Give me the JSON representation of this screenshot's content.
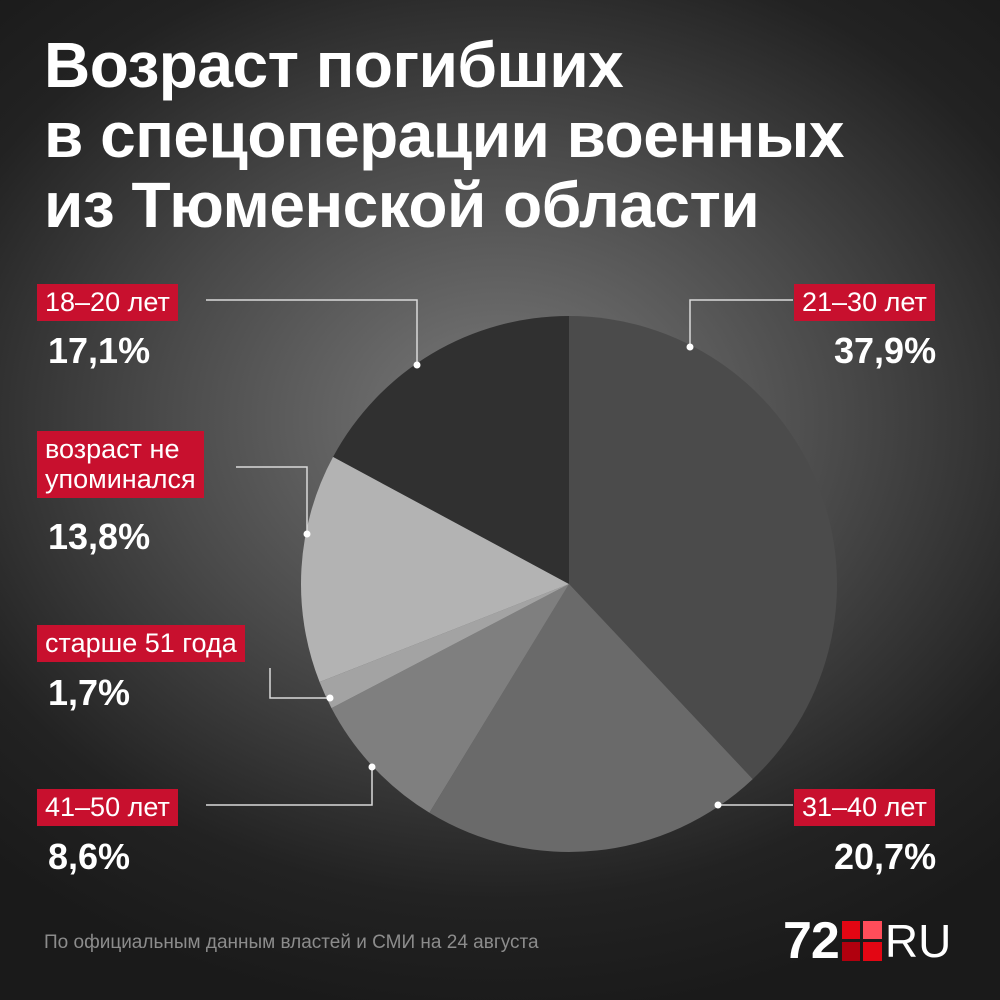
{
  "title_lines": [
    "Возраст погибших",
    "в спецоперации военных",
    "из Тюменской области"
  ],
  "source": "По официальным данным властей и СМИ на 24 августа",
  "logo": {
    "number": "72",
    "suffix": "RU"
  },
  "colors": {
    "accent": "#c8102e"
  },
  "chart_data": {
    "type": "pie",
    "title": "Возраст погибших в спецоперации военных из Тюменской области",
    "unit": "%",
    "slices": [
      {
        "label": "21–30 лет",
        "value": 37.9,
        "display": "37,9%",
        "color": "#4b4b4b"
      },
      {
        "label": "31–40 лет",
        "value": 20.7,
        "display": "20,7%",
        "color": "#6a6a6a"
      },
      {
        "label": "41–50 лет",
        "value": 8.6,
        "display": "8,6%",
        "color": "#7f7f7f"
      },
      {
        "label": "старше 51 года",
        "value": 1.7,
        "display": "1,7%",
        "color": "#a3a3a3"
      },
      {
        "label": "возраст не упоминался",
        "label_lines": [
          "возраст не",
          "упоминался"
        ],
        "value": 13.8,
        "display": "13,8%",
        "color": "#b3b3b3"
      },
      {
        "label": "18–20 лет",
        "value": 17.1,
        "display": "17,1%",
        "color": "#303030"
      }
    ]
  }
}
